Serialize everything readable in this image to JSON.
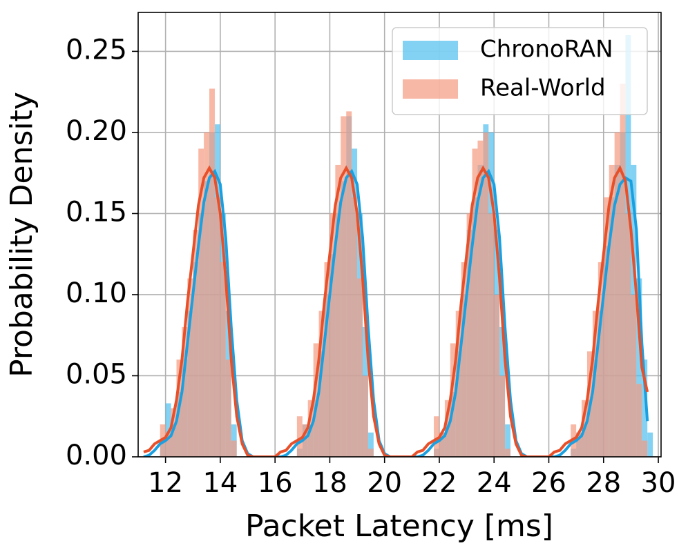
{
  "chart_data": {
    "type": "histogram",
    "xlabel": "Packet Latency [ms]",
    "ylabel": "Probability Density",
    "xlim": [
      11,
      30.1
    ],
    "ylim": [
      0,
      0.274
    ],
    "xticks": [
      12,
      14,
      16,
      18,
      20,
      22,
      24,
      26,
      28,
      30
    ],
    "yticks": [
      {
        "value": 0,
        "label": "0.00"
      },
      {
        "value": 0.05,
        "label": "0.05"
      },
      {
        "value": 0.1,
        "label": "0.10"
      },
      {
        "value": 0.15,
        "label": "0.15"
      },
      {
        "value": 0.2,
        "label": "0.20"
      },
      {
        "value": 0.25,
        "label": "0.25"
      }
    ],
    "grid": true,
    "legend": "upper right",
    "bins": [
      11.8,
      12,
      12.2,
      12.4,
      12.6,
      12.8,
      13,
      13.2,
      13.4,
      13.6,
      13.8,
      14,
      14.2,
      14.4,
      14.6,
      14.8,
      15,
      15.2,
      15.4,
      15.6,
      15.8,
      16,
      16.2,
      16.4,
      16.6,
      16.8,
      17,
      17.2,
      17.4,
      17.6,
      17.8,
      18,
      18.2,
      18.4,
      18.6,
      18.8,
      19,
      19.2,
      19.4,
      19.6,
      19.8,
      20,
      20.2,
      20.4,
      20.6,
      20.8,
      21,
      21.2,
      21.4,
      21.6,
      21.8,
      22,
      22.2,
      22.4,
      22.6,
      22.8,
      23,
      23.2,
      23.4,
      23.6,
      23.8,
      24,
      24.2,
      24.4,
      24.6,
      24.8,
      25,
      25.2,
      25.4,
      25.6,
      25.8,
      26,
      26.2,
      26.4,
      26.6,
      26.8,
      27,
      27.2,
      27.4,
      27.6,
      27.8,
      28,
      28.2,
      28.4,
      28.6,
      28.8,
      29,
      29.2,
      29.4,
      29.6,
      29.8
    ],
    "kde_x": [
      11.2,
      11.4,
      11.6,
      11.8,
      12,
      12.2,
      12.4,
      12.6,
      12.8,
      13,
      13.2,
      13.4,
      13.6,
      13.8,
      14,
      14.2,
      14.4,
      14.6,
      14.8,
      15,
      15.2,
      15.4,
      15.6,
      15.8,
      16,
      16.2,
      16.4,
      16.6,
      16.8,
      17,
      17.2,
      17.4,
      17.6,
      17.8,
      18,
      18.2,
      18.4,
      18.6,
      18.8,
      19,
      19.2,
      19.4,
      19.6,
      19.8,
      20,
      20.2,
      20.4,
      20.6,
      20.8,
      21,
      21.2,
      21.4,
      21.6,
      21.8,
      22,
      22.2,
      22.4,
      22.6,
      22.8,
      23,
      23.2,
      23.4,
      23.6,
      23.8,
      24,
      24.2,
      24.4,
      24.6,
      24.8,
      25,
      25.2,
      25.4,
      25.6,
      25.8,
      26,
      26.2,
      26.4,
      26.6,
      26.8,
      27,
      27.2,
      27.4,
      27.6,
      27.8,
      28,
      28.2,
      28.4,
      28.6,
      28.8,
      29,
      29.2,
      29.4,
      29.6
    ],
    "series": [
      {
        "name": "ChronoRAN",
        "color": "#4fbfee",
        "line_color": "#1aa0e0",
        "values": [
          0.01,
          0.033,
          0.02,
          0.04,
          0.06,
          0.09,
          0.12,
          0.15,
          0.17,
          0.2,
          0.205,
          0.15,
          0.09,
          0.02,
          0,
          0,
          0,
          0,
          0,
          0,
          0,
          0,
          0,
          0,
          0,
          0.005,
          0.02,
          0.02,
          0.035,
          0.065,
          0.1,
          0.125,
          0.15,
          0.17,
          0.21,
          0.19,
          0.15,
          0.08,
          0.015,
          0,
          0,
          0,
          0,
          0,
          0,
          0,
          0,
          0,
          0,
          0,
          0.005,
          0.015,
          0.02,
          0.04,
          0.065,
          0.1,
          0.14,
          0.16,
          0.18,
          0.205,
          0.2,
          0.14,
          0.08,
          0.02,
          0,
          0,
          0,
          0,
          0,
          0,
          0,
          0,
          0,
          0,
          0,
          0.005,
          0.015,
          0.02,
          0.035,
          0.06,
          0.09,
          0.13,
          0.16,
          0.18,
          0.2,
          0.26,
          0.18,
          0.11,
          0.06,
          0.015
        ],
        "kde": [
          0,
          0.001,
          0.004,
          0.008,
          0.01,
          0.013,
          0.022,
          0.04,
          0.07,
          0.1,
          0.13,
          0.157,
          0.172,
          0.176,
          0.168,
          0.135,
          0.08,
          0.035,
          0.01,
          0.002,
          0,
          0,
          0,
          0,
          0,
          0,
          0.001,
          0.004,
          0.008,
          0.01,
          0.013,
          0.022,
          0.04,
          0.07,
          0.1,
          0.13,
          0.157,
          0.172,
          0.176,
          0.168,
          0.135,
          0.08,
          0.035,
          0.01,
          0.002,
          0,
          0,
          0,
          0,
          0,
          0,
          0.001,
          0.004,
          0.008,
          0.01,
          0.013,
          0.022,
          0.04,
          0.07,
          0.1,
          0.13,
          0.157,
          0.172,
          0.176,
          0.168,
          0.135,
          0.08,
          0.035,
          0.01,
          0.002,
          0,
          0,
          0,
          0,
          0,
          0,
          0.001,
          0.004,
          0.008,
          0.01,
          0.013,
          0.022,
          0.04,
          0.07,
          0.1,
          0.13,
          0.155,
          0.168,
          0.172,
          0.17,
          0.14,
          0.07,
          0.022
        ]
      },
      {
        "name": "Real-World",
        "color": "#f59a80",
        "line_color": "#e8502a",
        "values": [
          0.02,
          0.015,
          0.03,
          0.06,
          0.08,
          0.11,
          0.14,
          0.19,
          0.2,
          0.227,
          0.16,
          0.12,
          0.06,
          0.01,
          0,
          0,
          0,
          0,
          0,
          0,
          0,
          0,
          0,
          0,
          0,
          0.025,
          0.02,
          0.035,
          0.07,
          0.09,
          0.12,
          0.15,
          0.18,
          0.21,
          0.213,
          0.16,
          0.11,
          0.05,
          0.005,
          0,
          0,
          0,
          0,
          0,
          0,
          0,
          0,
          0,
          0,
          0,
          0.025,
          0.015,
          0.035,
          0.07,
          0.09,
          0.12,
          0.15,
          0.19,
          0.195,
          0.2,
          0.15,
          0.1,
          0.05,
          0.005,
          0,
          0,
          0,
          0,
          0,
          0,
          0,
          0,
          0,
          0,
          0,
          0.02,
          0.015,
          0.035,
          0.065,
          0.09,
          0.12,
          0.16,
          0.18,
          0.2,
          0.23,
          0.15,
          0.1,
          0.045,
          0.01,
          0
        ],
        "kde": [
          0.003,
          0.004,
          0.008,
          0.01,
          0.012,
          0.018,
          0.035,
          0.06,
          0.095,
          0.125,
          0.155,
          0.172,
          0.178,
          0.172,
          0.15,
          0.11,
          0.06,
          0.025,
          0.008,
          0.001,
          0,
          0,
          0,
          0,
          0,
          0.003,
          0.004,
          0.008,
          0.01,
          0.012,
          0.018,
          0.035,
          0.06,
          0.095,
          0.125,
          0.155,
          0.172,
          0.178,
          0.172,
          0.15,
          0.11,
          0.06,
          0.025,
          0.008,
          0.001,
          0,
          0,
          0,
          0,
          0,
          0.003,
          0.004,
          0.008,
          0.01,
          0.012,
          0.018,
          0.035,
          0.06,
          0.095,
          0.125,
          0.155,
          0.172,
          0.178,
          0.172,
          0.15,
          0.11,
          0.06,
          0.025,
          0.008,
          0.001,
          0,
          0,
          0,
          0,
          0,
          0.003,
          0.004,
          0.008,
          0.01,
          0.012,
          0.018,
          0.035,
          0.06,
          0.095,
          0.125,
          0.155,
          0.172,
          0.178,
          0.17,
          0.14,
          0.1,
          0.055,
          0.04
        ]
      }
    ]
  }
}
